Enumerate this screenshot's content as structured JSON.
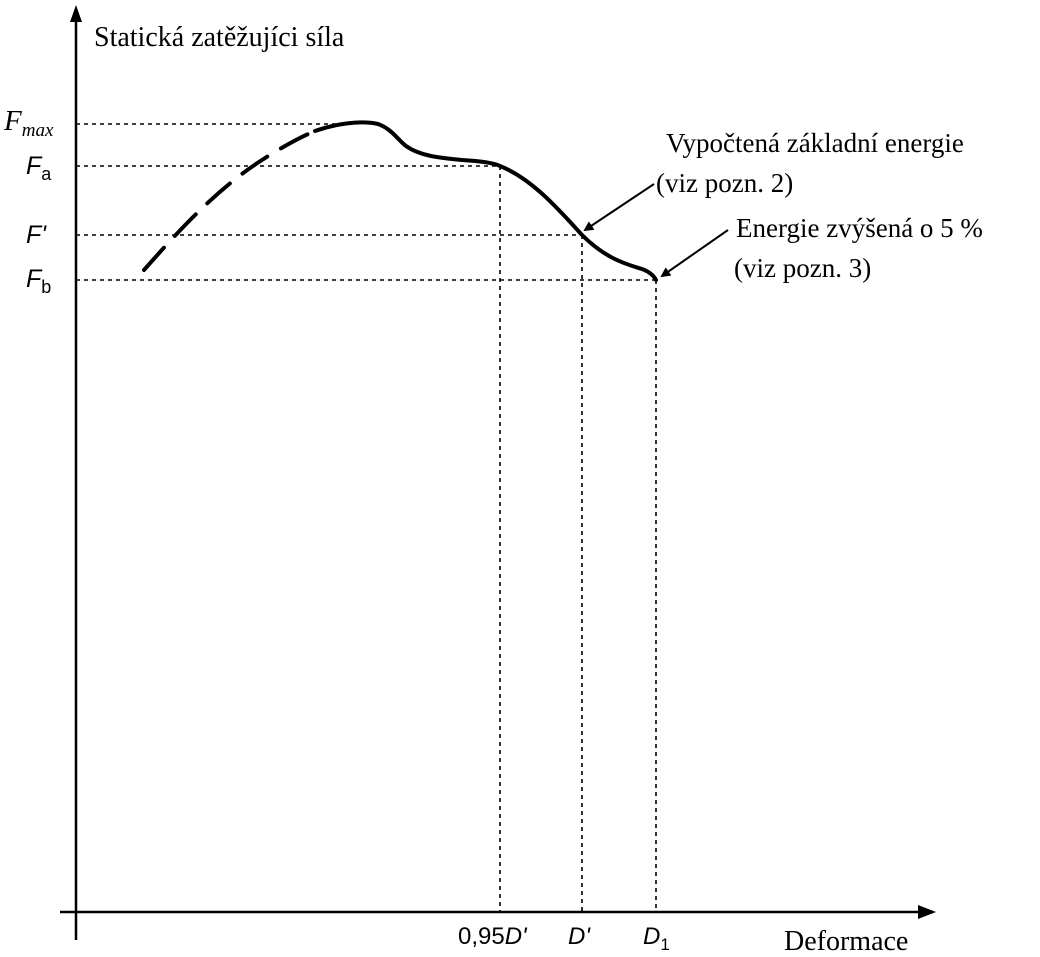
{
  "chart_data": {
    "type": "line",
    "ylabel": "Statická zatěžujíci síla",
    "xlabel": "Deformace",
    "y_ticks": [
      {
        "id": "fmax",
        "main": "F",
        "sub": "max",
        "style": "serif-italic"
      },
      {
        "id": "fa",
        "main": "F",
        "sub": "a",
        "style": "sans"
      },
      {
        "id": "fprime",
        "main": "F'",
        "sub": "",
        "style": "sans"
      },
      {
        "id": "fb",
        "main": "F",
        "sub": "b",
        "style": "sans"
      }
    ],
    "x_ticks": [
      {
        "id": "d095",
        "prefix": "0,95",
        "main": "D'",
        "sub": ""
      },
      {
        "id": "dprime",
        "prefix": "",
        "main": "D'",
        "sub": ""
      },
      {
        "id": "d1",
        "prefix": "",
        "main": "D",
        "sub": "1"
      }
    ],
    "series": [
      {
        "style": "dashed-then-solid",
        "points": [
          {
            "x": 0.08,
            "y": 0.36
          },
          {
            "x": 0.34,
            "y": 0.77
          },
          {
            "x": 0.51,
            "y": 1.0
          },
          {
            "x": 0.63,
            "y": 0.88
          },
          {
            "x": 0.95,
            "y": 0.81
          },
          {
            "x": 1.0,
            "y": 0.62
          },
          {
            "x": 1.07,
            "y": 0.52
          }
        ]
      }
    ],
    "annotations": [
      {
        "id": "calc",
        "lines": [
          "Vypočtená základní energie",
          "(viz pozn. 2)"
        ],
        "points_to": "D'"
      },
      {
        "id": "plus5",
        "lines": [
          "Energie zvýšená o 5 %",
          "(viz pozn. 3)"
        ],
        "points_to": "D1"
      }
    ],
    "grid": false,
    "legend": "none"
  }
}
